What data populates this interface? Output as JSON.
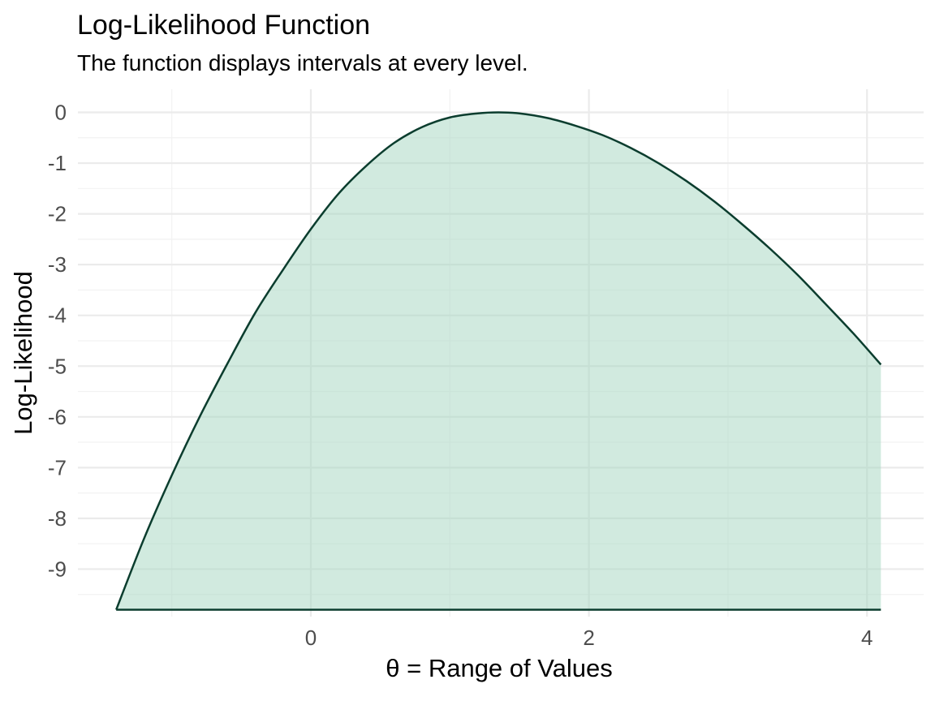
{
  "chart_data": {
    "type": "area",
    "title": "Log-Likelihood Function",
    "subtitle": "The function displays intervals at every level.",
    "xlabel": "θ =  Range of Values",
    "ylabel": "Log-Likelihood",
    "xlim": [
      -1.4,
      4.15
    ],
    "ylim": [
      -9.8,
      0
    ],
    "x_ticks": [
      0,
      2,
      4
    ],
    "x_tick_labels": [
      "0",
      "2",
      "4"
    ],
    "y_ticks": [
      0,
      -1,
      -2,
      -3,
      -4,
      -5,
      -6,
      -7,
      -8,
      -9
    ],
    "y_tick_labels": [
      "0",
      "-1",
      "-2",
      "-3",
      "-4",
      "-5",
      "-6",
      "-7",
      "-8",
      "-9"
    ],
    "grid": true,
    "legend": "none",
    "colors": {
      "line": "#0b3d2e",
      "fill": "#a3d5bf",
      "fill_opacity": 0.5
    },
    "series": [
      {
        "x": [
          -1.4,
          -1.2,
          -1.0,
          -0.8,
          -0.6,
          -0.4,
          -0.2,
          0.0,
          0.2,
          0.4,
          0.6,
          0.8,
          1.0,
          1.2,
          1.35,
          1.5,
          1.7,
          1.9,
          2.1,
          2.3,
          2.5,
          2.7,
          2.9,
          3.1,
          3.3,
          3.5,
          3.7,
          3.9,
          4.1
        ],
        "y": [
          -9.8,
          -8.4,
          -7.15,
          -6.0,
          -4.95,
          -3.95,
          -3.1,
          -2.3,
          -1.6,
          -1.05,
          -0.6,
          -0.29,
          -0.1,
          -0.02,
          0.0,
          -0.02,
          -0.11,
          -0.26,
          -0.45,
          -0.7,
          -1.0,
          -1.35,
          -1.75,
          -2.2,
          -2.68,
          -3.2,
          -3.77,
          -4.35,
          -4.97
        ]
      }
    ]
  }
}
